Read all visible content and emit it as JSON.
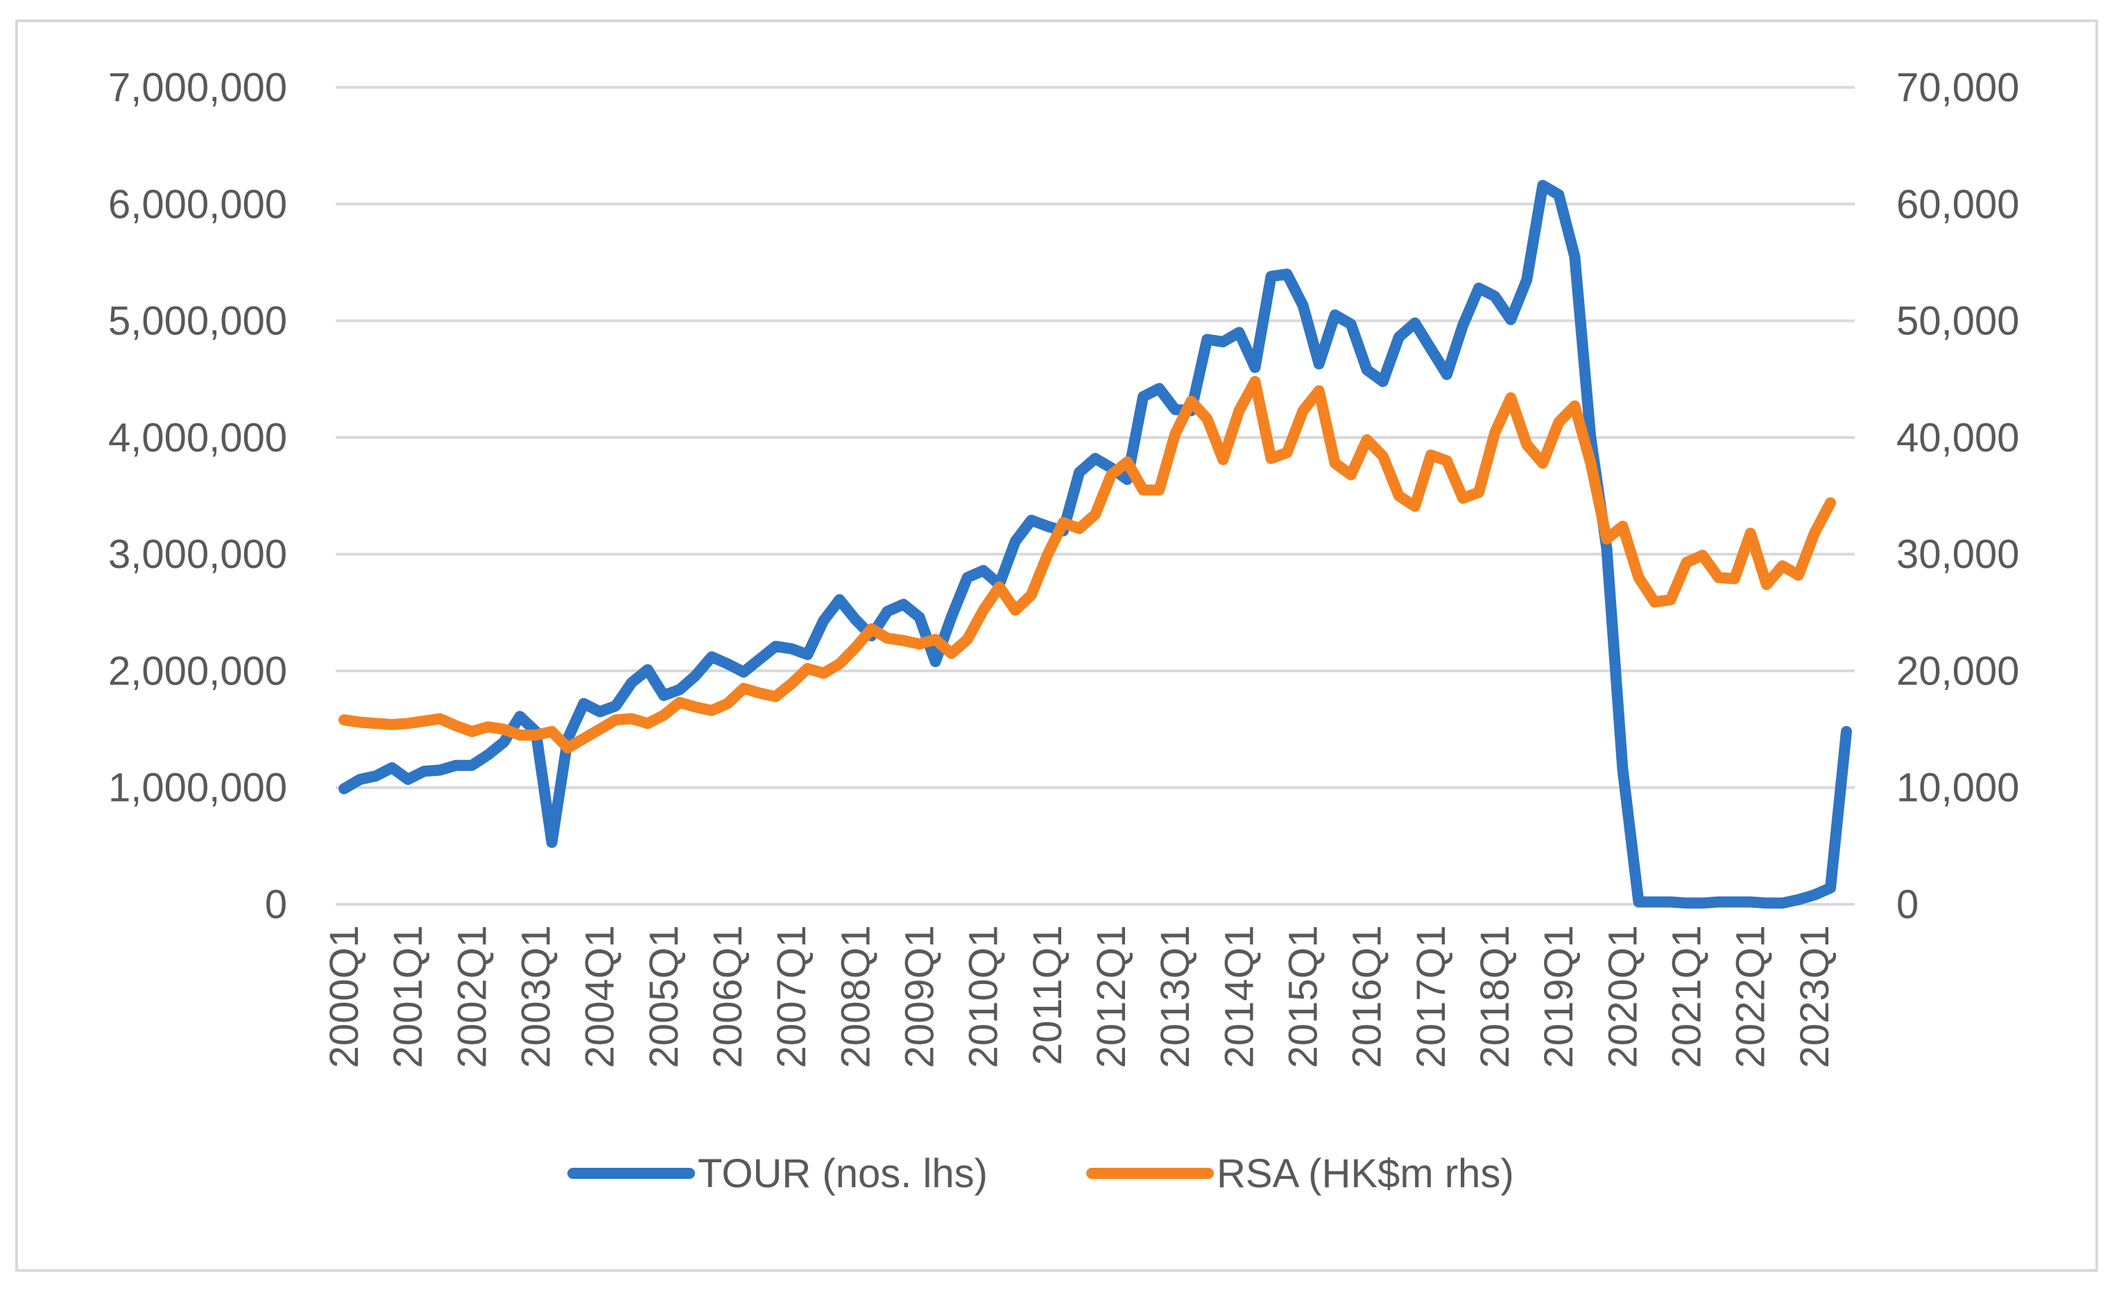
{
  "chart_data": {
    "type": "line",
    "title": "",
    "xlabel": "",
    "ylabel": "",
    "ylabel_right": "",
    "grid": true,
    "legend_position": "bottom",
    "ylim": [
      0,
      7000000
    ],
    "ylim_right": [
      0,
      70000
    ],
    "y_ticks": [
      "0",
      "1,000,000",
      "2,000,000",
      "3,000,000",
      "4,000,000",
      "5,000,000",
      "6,000,000",
      "7,000,000"
    ],
    "y_ticks_right": [
      "0",
      "10,000",
      "20,000",
      "30,000",
      "40,000",
      "50,000",
      "60,000",
      "70,000"
    ],
    "x_tick_labels": [
      "2000Q1",
      "2001Q1",
      "2002Q1",
      "2003Q1",
      "2004Q1",
      "2005Q1",
      "2006Q1",
      "2007Q1",
      "2008Q1",
      "2009Q1",
      "2010Q1",
      "2011Q1",
      "2012Q1",
      "2013Q1",
      "2014Q1",
      "2015Q1",
      "2016Q1",
      "2017Q1",
      "2018Q1",
      "2019Q1",
      "2020Q1",
      "2021Q1",
      "2022Q1",
      "2023Q1"
    ],
    "x_start_year": 2000,
    "colors": {
      "tour": "#2e75c6",
      "rsa": "#f58220",
      "grid": "#d9d9d9",
      "text": "#595959"
    },
    "series": [
      {
        "name": "TOUR (nos. lhs)",
        "axis": "left",
        "values": [
          990000,
          1070000,
          1100000,
          1170000,
          1070000,
          1140000,
          1150000,
          1190000,
          1190000,
          1280000,
          1390000,
          1610000,
          1480000,
          530000,
          1420000,
          1720000,
          1650000,
          1700000,
          1900000,
          2010000,
          1790000,
          1840000,
          1960000,
          2120000,
          2060000,
          1990000,
          2100000,
          2210000,
          2190000,
          2140000,
          2430000,
          2610000,
          2440000,
          2300000,
          2510000,
          2570000,
          2460000,
          2080000,
          2460000,
          2800000,
          2860000,
          2740000,
          3110000,
          3290000,
          3240000,
          3200000,
          3700000,
          3820000,
          3740000,
          3640000,
          4350000,
          4420000,
          4240000,
          4230000,
          4840000,
          4820000,
          4900000,
          4600000,
          5380000,
          5400000,
          5130000,
          4630000,
          5050000,
          4970000,
          4580000,
          4480000,
          4860000,
          4980000,
          4760000,
          4540000,
          4960000,
          5280000,
          5210000,
          5010000,
          5350000,
          6160000,
          6080000,
          5550000,
          4000000,
          3050000,
          1160000,
          20000,
          20000,
          20000,
          10000,
          10000,
          20000,
          20000,
          20000,
          10000,
          10000,
          40000,
          80000,
          140000,
          1480000
        ]
      },
      {
        "name": "RSA (HK$m rhs)",
        "axis": "right",
        "values": [
          15800,
          15600,
          15500,
          15400,
          15500,
          15700,
          15900,
          15300,
          14800,
          15200,
          15000,
          14500,
          14500,
          14800,
          13400,
          14200,
          15000,
          15800,
          15900,
          15500,
          16200,
          17300,
          16900,
          16600,
          17200,
          18500,
          18100,
          17800,
          18900,
          20200,
          19800,
          20600,
          22000,
          23600,
          22800,
          22600,
          22300,
          22700,
          21500,
          22700,
          25200,
          27200,
          25200,
          26500,
          29900,
          32700,
          32200,
          33400,
          36800,
          37900,
          35500,
          35500,
          40300,
          43100,
          41600,
          38100,
          42300,
          44800,
          38200,
          38700,
          42300,
          44000,
          37800,
          36800,
          39800,
          38400,
          35000,
          34100,
          38500,
          38000,
          34800,
          35300,
          40400,
          43400,
          39400,
          37800,
          41300,
          42700,
          37800,
          31300,
          32400,
          28000,
          25900,
          26100,
          29300,
          29900,
          28000,
          27900,
          31800,
          27400,
          29000,
          28200,
          31800,
          34400
        ]
      }
    ]
  }
}
